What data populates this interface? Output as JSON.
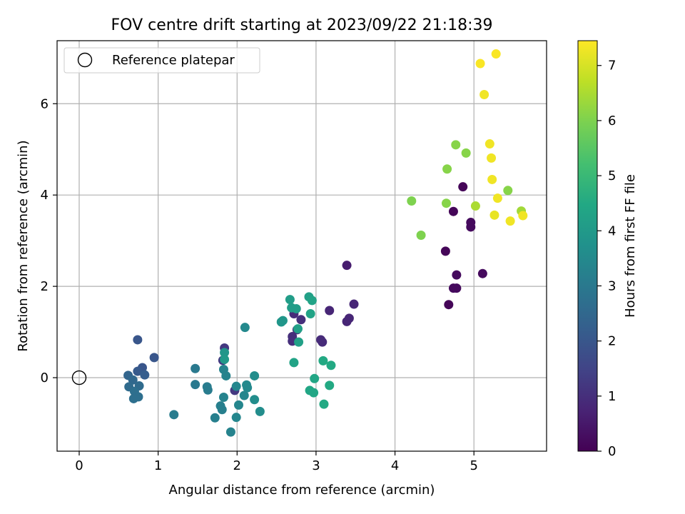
{
  "chart_data": {
    "type": "scatter",
    "title": "FOV centre drift starting at 2023/09/22 21:18:39",
    "xlabel": "Angular distance from reference (arcmin)",
    "ylabel": "Rotation from reference (arcmin)",
    "xlim": [
      -0.28,
      5.92
    ],
    "ylim": [
      -1.61,
      7.38
    ],
    "xticks": [
      0,
      1,
      2,
      3,
      4,
      5
    ],
    "xtick_labels": [
      "0",
      "1",
      "2",
      "3",
      "4",
      "5"
    ],
    "yticks": [
      0,
      2,
      4,
      6
    ],
    "ytick_labels": [
      "0",
      "2",
      "4",
      "6"
    ],
    "grid": true,
    "legend": {
      "placement": "top-left",
      "entries": [
        "Reference platepar"
      ]
    },
    "reference_point": {
      "x": 0,
      "y": 0,
      "label": "Reference platepar"
    },
    "colorbar": {
      "label": "Hours from first FF file",
      "range": [
        0,
        7.45
      ],
      "ticks": [
        0,
        1,
        2,
        3,
        4,
        5,
        6,
        7
      ],
      "tick_labels": [
        "0",
        "1",
        "2",
        "3",
        "4",
        "5",
        "6",
        "7"
      ],
      "colormap": "viridis"
    },
    "points": [
      {
        "x": 4.64,
        "y": 2.77,
        "c": 0.1
      },
      {
        "x": 4.68,
        "y": 1.6,
        "c": 0.1
      },
      {
        "x": 4.74,
        "y": 1.96,
        "c": 0.2
      },
      {
        "x": 4.78,
        "y": 1.96,
        "c": 0.2
      },
      {
        "x": 4.78,
        "y": 2.25,
        "c": 0.2
      },
      {
        "x": 4.74,
        "y": 3.64,
        "c": 0.1
      },
      {
        "x": 4.86,
        "y": 4.18,
        "c": 0.1
      },
      {
        "x": 4.96,
        "y": 3.4,
        "c": 0.2
      },
      {
        "x": 4.96,
        "y": 3.3,
        "c": 0.2
      },
      {
        "x": 5.11,
        "y": 2.28,
        "c": 0.2
      },
      {
        "x": 3.39,
        "y": 2.46,
        "c": 0.6
      },
      {
        "x": 3.48,
        "y": 1.61,
        "c": 0.8
      },
      {
        "x": 3.17,
        "y": 1.47,
        "c": 0.8
      },
      {
        "x": 3.42,
        "y": 1.3,
        "c": 0.8
      },
      {
        "x": 3.39,
        "y": 1.23,
        "c": 0.8
      },
      {
        "x": 3.06,
        "y": 0.83,
        "c": 0.9
      },
      {
        "x": 3.08,
        "y": 0.78,
        "c": 0.9
      },
      {
        "x": 2.72,
        "y": 1.4,
        "c": 0.9
      },
      {
        "x": 2.81,
        "y": 1.27,
        "c": 1.0
      },
      {
        "x": 2.76,
        "y": 1.05,
        "c": 1.0
      },
      {
        "x": 2.7,
        "y": 0.9,
        "c": 1.0
      },
      {
        "x": 2.7,
        "y": 0.8,
        "c": 1.0
      },
      {
        "x": 1.84,
        "y": 0.65,
        "c": 1.2
      },
      {
        "x": 1.82,
        "y": 0.38,
        "c": 1.2
      },
      {
        "x": 1.97,
        "y": -0.28,
        "c": 1.2
      },
      {
        "x": 0.74,
        "y": 0.83,
        "c": 2.0
      },
      {
        "x": 0.95,
        "y": 0.44,
        "c": 2.0
      },
      {
        "x": 0.8,
        "y": 0.22,
        "c": 2.0
      },
      {
        "x": 0.74,
        "y": 0.14,
        "c": 2.1
      },
      {
        "x": 0.83,
        "y": 0.06,
        "c": 2.2
      },
      {
        "x": 0.62,
        "y": 0.05,
        "c": 2.4
      },
      {
        "x": 0.68,
        "y": -0.05,
        "c": 2.5
      },
      {
        "x": 0.76,
        "y": -0.18,
        "c": 2.6
      },
      {
        "x": 0.63,
        "y": -0.2,
        "c": 2.6
      },
      {
        "x": 0.7,
        "y": -0.3,
        "c": 2.7
      },
      {
        "x": 0.75,
        "y": -0.42,
        "c": 2.7
      },
      {
        "x": 0.69,
        "y": -0.46,
        "c": 2.7
      },
      {
        "x": 1.2,
        "y": -0.81,
        "c": 3.1
      },
      {
        "x": 1.47,
        "y": 0.2,
        "c": 3.0
      },
      {
        "x": 1.47,
        "y": -0.15,
        "c": 3.0
      },
      {
        "x": 1.62,
        "y": -0.2,
        "c": 3.1
      },
      {
        "x": 1.63,
        "y": -0.27,
        "c": 3.1
      },
      {
        "x": 1.72,
        "y": -0.88,
        "c": 3.2
      },
      {
        "x": 1.79,
        "y": -0.62,
        "c": 3.2
      },
      {
        "x": 1.81,
        "y": -0.7,
        "c": 3.2
      },
      {
        "x": 1.83,
        "y": -0.43,
        "c": 3.3
      },
      {
        "x": 1.83,
        "y": 0.18,
        "c": 3.3
      },
      {
        "x": 1.86,
        "y": 0.04,
        "c": 3.3
      },
      {
        "x": 1.92,
        "y": -1.19,
        "c": 3.3
      },
      {
        "x": 1.99,
        "y": -0.19,
        "c": 3.4
      },
      {
        "x": 1.99,
        "y": -0.87,
        "c": 3.4
      },
      {
        "x": 2.02,
        "y": -0.6,
        "c": 3.4
      },
      {
        "x": 2.09,
        "y": -0.39,
        "c": 3.4
      },
      {
        "x": 2.12,
        "y": -0.16,
        "c": 3.5
      },
      {
        "x": 2.13,
        "y": -0.22,
        "c": 3.5
      },
      {
        "x": 2.1,
        "y": 1.1,
        "c": 3.5
      },
      {
        "x": 2.22,
        "y": 0.04,
        "c": 3.6
      },
      {
        "x": 2.22,
        "y": -0.48,
        "c": 3.6
      },
      {
        "x": 2.29,
        "y": -0.74,
        "c": 3.6
      },
      {
        "x": 1.84,
        "y": 0.55,
        "c": 3.9
      },
      {
        "x": 1.84,
        "y": 0.4,
        "c": 4.0
      },
      {
        "x": 2.56,
        "y": 1.22,
        "c": 3.9
      },
      {
        "x": 2.58,
        "y": 1.25,
        "c": 3.9
      },
      {
        "x": 2.67,
        "y": 1.71,
        "c": 4.1
      },
      {
        "x": 2.69,
        "y": 1.53,
        "c": 4.1
      },
      {
        "x": 2.75,
        "y": 1.51,
        "c": 4.1
      },
      {
        "x": 2.77,
        "y": 1.07,
        "c": 4.2
      },
      {
        "x": 2.78,
        "y": 0.78,
        "c": 4.2
      },
      {
        "x": 2.72,
        "y": 0.33,
        "c": 4.3
      },
      {
        "x": 2.91,
        "y": 1.77,
        "c": 4.2
      },
      {
        "x": 2.95,
        "y": 1.69,
        "c": 4.3
      },
      {
        "x": 2.93,
        "y": 1.4,
        "c": 4.3
      },
      {
        "x": 2.92,
        "y": -0.28,
        "c": 4.4
      },
      {
        "x": 2.97,
        "y": -0.33,
        "c": 4.4
      },
      {
        "x": 2.98,
        "y": -0.02,
        "c": 4.4
      },
      {
        "x": 3.09,
        "y": 0.37,
        "c": 4.5
      },
      {
        "x": 3.19,
        "y": 0.27,
        "c": 4.5
      },
      {
        "x": 3.17,
        "y": -0.17,
        "c": 4.5
      },
      {
        "x": 3.1,
        "y": -0.58,
        "c": 4.5
      },
      {
        "x": 4.21,
        "y": 3.87,
        "c": 6.0
      },
      {
        "x": 4.33,
        "y": 3.12,
        "c": 6.0
      },
      {
        "x": 4.66,
        "y": 4.57,
        "c": 6.1
      },
      {
        "x": 4.65,
        "y": 3.82,
        "c": 6.1
      },
      {
        "x": 4.77,
        "y": 5.1,
        "c": 6.1
      },
      {
        "x": 4.9,
        "y": 4.92,
        "c": 6.1
      },
      {
        "x": 5.02,
        "y": 3.76,
        "c": 6.5
      },
      {
        "x": 5.43,
        "y": 4.1,
        "c": 6.1
      },
      {
        "x": 5.6,
        "y": 3.65,
        "c": 6.4
      },
      {
        "x": 5.08,
        "y": 6.88,
        "c": 7.4
      },
      {
        "x": 5.28,
        "y": 7.09,
        "c": 7.4
      },
      {
        "x": 5.13,
        "y": 6.2,
        "c": 7.3
      },
      {
        "x": 5.2,
        "y": 5.12,
        "c": 7.3
      },
      {
        "x": 5.22,
        "y": 4.81,
        "c": 7.3
      },
      {
        "x": 5.23,
        "y": 4.34,
        "c": 7.3
      },
      {
        "x": 5.3,
        "y": 3.93,
        "c": 7.3
      },
      {
        "x": 5.26,
        "y": 3.56,
        "c": 7.2
      },
      {
        "x": 5.46,
        "y": 3.43,
        "c": 7.3
      },
      {
        "x": 5.62,
        "y": 3.55,
        "c": 7.3
      }
    ]
  }
}
